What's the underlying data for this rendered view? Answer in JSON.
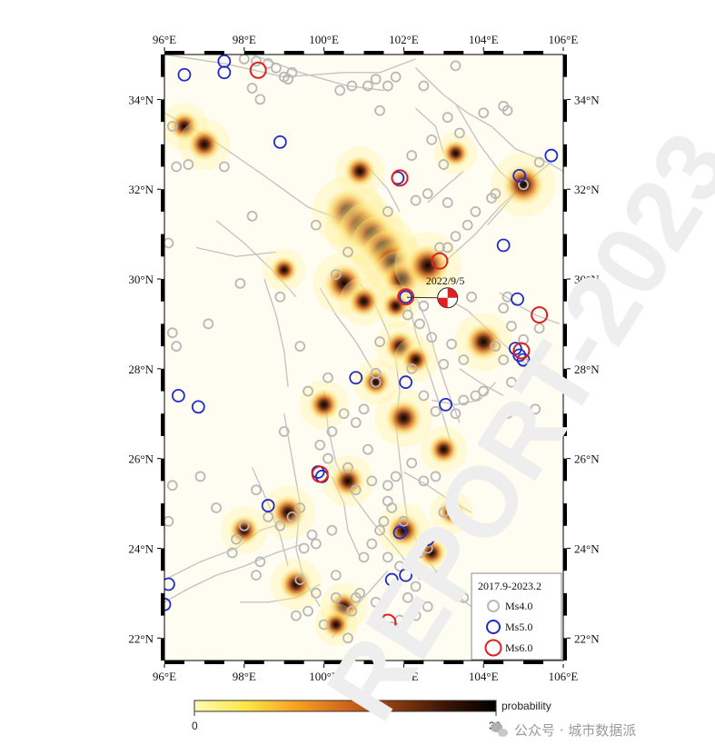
{
  "watermark": {
    "text": "REPORT-2023",
    "footer": "公众号 · 城市数据派",
    "footer_icon": "wechat-icon"
  },
  "map": {
    "lon_range": [
      96,
      106
    ],
    "lat_range": [
      21.5,
      35
    ],
    "lon_ticks": [
      96,
      98,
      100,
      102,
      104,
      106
    ],
    "lat_ticks": [
      22,
      24,
      26,
      28,
      30,
      32,
      34
    ],
    "lon_labels": [
      "96°E",
      "98°E",
      "100°E",
      "102°E",
      "104°E",
      "106°E"
    ],
    "lat_labels": [
      "22°N",
      "24°N",
      "26°N",
      "28°N",
      "30°N",
      "32°N",
      "34°N"
    ],
    "background_color": "#fffdf2",
    "fault_color": "#c4c4c4",
    "event_label": "2022/9/5",
    "event_location": [
      102.08,
      29.59
    ],
    "mechanism_location": [
      103.1,
      29.58
    ]
  },
  "legend": {
    "period": "2017.9-2023.2",
    "items": [
      {
        "label": "Ms4.0",
        "color": "#b8b8b8"
      },
      {
        "label": "Ms5.0",
        "color": "#1f2bc9"
      },
      {
        "label": "Ms6.0",
        "color": "#e02020"
      }
    ]
  },
  "colorbar": {
    "label": "probability",
    "min_label": "0",
    "max_label": "30",
    "colors": [
      "#fffbb4",
      "#fde64a",
      "#f7a322",
      "#d2661a",
      "#8a3a0f",
      "#3b1505",
      "#000000"
    ]
  },
  "earthquakes_ms5": [
    [
      96.5,
      34.55
    ],
    [
      97.5,
      34.85
    ],
    [
      97.5,
      34.6
    ],
    [
      98.9,
      33.05
    ],
    [
      101.85,
      32.25
    ],
    [
      104.9,
      32.3
    ],
    [
      105.7,
      32.75
    ],
    [
      104.5,
      30.75
    ],
    [
      102.05,
      29.6
    ],
    [
      104.85,
      29.55
    ],
    [
      104.8,
      28.45
    ],
    [
      104.9,
      28.3
    ],
    [
      105.0,
      28.2
    ],
    [
      100.8,
      27.8
    ],
    [
      102.05,
      27.7
    ],
    [
      103.05,
      27.2
    ],
    [
      96.35,
      27.4
    ],
    [
      96.85,
      27.15
    ],
    [
      99.85,
      25.7
    ],
    [
      99.95,
      25.6
    ],
    [
      98.6,
      24.95
    ],
    [
      101.9,
      24.35
    ],
    [
      102.6,
      24.2
    ],
    [
      101.7,
      23.3
    ],
    [
      102.05,
      23.4
    ],
    [
      96.1,
      23.2
    ],
    [
      96.0,
      22.75
    ]
  ],
  "earthquakes_ms6": [
    [
      98.35,
      34.65
    ],
    [
      101.9,
      32.25
    ],
    [
      102.9,
      30.4
    ],
    [
      102.05,
      29.6
    ],
    [
      105.4,
      29.2
    ],
    [
      104.95,
      28.4
    ],
    [
      99.9,
      25.65
    ],
    [
      101.6,
      22.35
    ]
  ],
  "earthquakes_ms4": [
    [
      96.2,
      33.4
    ],
    [
      96.3,
      32.5
    ],
    [
      96.6,
      32.55
    ],
    [
      97.5,
      32.5
    ],
    [
      96.1,
      30.8
    ],
    [
      97.1,
      29.0
    ],
    [
      96.3,
      28.5
    ],
    [
      96.2,
      28.8
    ],
    [
      98.2,
      31.4
    ],
    [
      98.4,
      34.0
    ],
    [
      98.2,
      34.25
    ],
    [
      98.0,
      34.9
    ],
    [
      98.3,
      34.85
    ],
    [
      98.8,
      34.7
    ],
    [
      99.0,
      34.5
    ],
    [
      99.1,
      34.45
    ],
    [
      98.6,
      34.8
    ],
    [
      99.2,
      34.6
    ],
    [
      100.4,
      34.2
    ],
    [
      100.7,
      34.3
    ],
    [
      101.1,
      34.3
    ],
    [
      101.3,
      34.45
    ],
    [
      101.6,
      34.3
    ],
    [
      101.4,
      33.75
    ],
    [
      101.8,
      34.5
    ],
    [
      102.5,
      34.3
    ],
    [
      103.1,
      33.6
    ],
    [
      103.3,
      34.75
    ],
    [
      102.7,
      33.1
    ],
    [
      103.4,
      33.25
    ],
    [
      103.0,
      32.55
    ],
    [
      104.0,
      33.7
    ],
    [
      104.5,
      33.85
    ],
    [
      104.6,
      33.75
    ],
    [
      105.4,
      32.6
    ],
    [
      105.0,
      32.1
    ],
    [
      104.3,
      31.9
    ],
    [
      104.2,
      31.8
    ],
    [
      103.8,
      31.5
    ],
    [
      103.6,
      31.2
    ],
    [
      103.3,
      30.95
    ],
    [
      103.1,
      30.7
    ],
    [
      102.9,
      30.7
    ],
    [
      102.6,
      31.9
    ],
    [
      103.1,
      31.7
    ],
    [
      102.2,
      32.75
    ],
    [
      102.3,
      31.75
    ],
    [
      101.6,
      31.5
    ],
    [
      100.6,
      30.6
    ],
    [
      100.3,
      30.1
    ],
    [
      99.8,
      31.2
    ],
    [
      98.9,
      29.6
    ],
    [
      97.9,
      29.9
    ],
    [
      99.4,
      28.5
    ],
    [
      102.5,
      29.4
    ],
    [
      102.4,
      29.0
    ],
    [
      102.1,
      29.2
    ],
    [
      102.7,
      28.7
    ],
    [
      103.0,
      28.1
    ],
    [
      103.2,
      28.55
    ],
    [
      103.5,
      28.2
    ],
    [
      103.7,
      29.6
    ],
    [
      104.5,
      29.35
    ],
    [
      104.6,
      29.6
    ],
    [
      104.7,
      28.95
    ],
    [
      104.5,
      28.2
    ],
    [
      105.0,
      28.15
    ],
    [
      105.2,
      28.1
    ],
    [
      104.7,
      27.7
    ],
    [
      104.6,
      27.0
    ],
    [
      105.3,
      27.1
    ],
    [
      105.0,
      28.65
    ],
    [
      105.4,
      28.9
    ],
    [
      104.3,
      28.5
    ],
    [
      104.0,
      27.5
    ],
    [
      103.8,
      27.4
    ],
    [
      103.5,
      27.3
    ],
    [
      103.3,
      27.0
    ],
    [
      102.8,
      27.05
    ],
    [
      102.5,
      27.4
    ],
    [
      102.2,
      28.0
    ],
    [
      101.4,
      28.6
    ],
    [
      101.3,
      27.9
    ],
    [
      101.0,
      27.1
    ],
    [
      100.8,
      26.8
    ],
    [
      100.5,
      27.0
    ],
    [
      100.2,
      26.6
    ],
    [
      99.9,
      26.3
    ],
    [
      100.1,
      26.0
    ],
    [
      100.6,
      25.8
    ],
    [
      101.2,
      25.5
    ],
    [
      101.6,
      25.4
    ],
    [
      101.5,
      24.6
    ],
    [
      101.8,
      25.6
    ],
    [
      102.2,
      25.9
    ],
    [
      102.5,
      25.5
    ],
    [
      102.8,
      25.6
    ],
    [
      101.6,
      25.05
    ],
    [
      102.4,
      23.9
    ],
    [
      103.0,
      24.8
    ],
    [
      102.0,
      24.6
    ],
    [
      101.2,
      24.1
    ],
    [
      101.0,
      23.8
    ],
    [
      100.9,
      23.0
    ],
    [
      101.3,
      22.8
    ],
    [
      102.3,
      22.5
    ],
    [
      102.6,
      22.7
    ],
    [
      102.1,
      22.9
    ],
    [
      102.3,
      23.15
    ],
    [
      101.9,
      23.6
    ],
    [
      101.6,
      23.8
    ],
    [
      100.8,
      22.9
    ],
    [
      100.7,
      22.6
    ],
    [
      100.3,
      22.9
    ],
    [
      99.8,
      23.0
    ],
    [
      99.4,
      23.3
    ],
    [
      99.5,
      24.0
    ],
    [
      99.7,
      24.3
    ],
    [
      99.4,
      24.9
    ],
    [
      99.2,
      24.7
    ],
    [
      98.9,
      24.5
    ],
    [
      98.6,
      24.7
    ],
    [
      98.4,
      23.7
    ],
    [
      98.3,
      23.4
    ],
    [
      98.0,
      24.5
    ],
    [
      97.7,
      23.9
    ],
    [
      97.8,
      24.2
    ],
    [
      97.3,
      24.9
    ],
    [
      96.9,
      25.6
    ],
    [
      96.2,
      25.4
    ],
    [
      96.1,
      24.6
    ],
    [
      98.3,
      25.3
    ],
    [
      99.0,
      26.6
    ],
    [
      99.6,
      27.5
    ],
    [
      100.1,
      27.8
    ],
    [
      101.3,
      27.7
    ],
    [
      101.7,
      24.9
    ],
    [
      101.4,
      24.4
    ],
    [
      99.8,
      24.1
    ],
    [
      100.2,
      24.4
    ],
    [
      101.1,
      26.2
    ],
    [
      100.8,
      25.3
    ],
    [
      102.6,
      24.0
    ],
    [
      102.9,
      23.4
    ],
    [
      103.5,
      22.9
    ],
    [
      101.7,
      22.25
    ],
    [
      101.9,
      22.4
    ],
    [
      100.0,
      22.3
    ],
    [
      99.3,
      22.5
    ],
    [
      100.6,
      22.0
    ],
    [
      101.4,
      22.5
    ],
    [
      99.6,
      22.6
    ],
    [
      100.3,
      23.4
    ]
  ],
  "hotspots": [
    {
      "center": [
        100.6,
        31.5
      ],
      "size": 1.0
    },
    {
      "center": [
        100.9,
        31.2
      ],
      "size": 1.0
    },
    {
      "center": [
        101.2,
        31.0
      ],
      "size": 0.9
    },
    {
      "center": [
        101.5,
        30.7
      ],
      "size": 0.9
    },
    {
      "center": [
        101.7,
        30.4
      ],
      "size": 0.8
    },
    {
      "center": [
        101.95,
        30.0
      ],
      "size": 0.7
    },
    {
      "center": [
        102.6,
        30.3
      ],
      "size": 0.9
    },
    {
      "center": [
        100.9,
        32.4
      ],
      "size": 0.5
    },
    {
      "center": [
        100.5,
        29.9
      ],
      "size": 0.8
    },
    {
      "center": [
        101.0,
        29.5
      ],
      "size": 0.5
    },
    {
      "center": [
        105.0,
        32.1
      ],
      "size": 0.85
    },
    {
      "center": [
        104.0,
        28.6
      ],
      "size": 0.7
    },
    {
      "center": [
        101.9,
        28.5
      ],
      "size": 0.5
    },
    {
      "center": [
        102.0,
        26.9
      ],
      "size": 0.7
    },
    {
      "center": [
        100.0,
        27.2
      ],
      "size": 0.5
    },
    {
      "center": [
        101.3,
        27.7
      ],
      "size": 0.4
    },
    {
      "center": [
        100.6,
        25.5
      ],
      "size": 0.55
    },
    {
      "center": [
        99.1,
        24.8
      ],
      "size": 0.6
    },
    {
      "center": [
        98.0,
        24.4
      ],
      "size": 0.45
    },
    {
      "center": [
        99.3,
        23.2
      ],
      "size": 0.55
    },
    {
      "center": [
        100.5,
        22.7
      ],
      "size": 0.45
    },
    {
      "center": [
        102.0,
        24.4
      ],
      "size": 0.6
    },
    {
      "center": [
        102.7,
        23.9
      ],
      "size": 0.4
    },
    {
      "center": [
        103.0,
        26.2
      ],
      "size": 0.45
    },
    {
      "center": [
        96.5,
        33.4
      ],
      "size": 0.45
    },
    {
      "center": [
        97.0,
        33.0
      ],
      "size": 0.55
    },
    {
      "center": [
        99.0,
        30.2
      ],
      "size": 0.35
    },
    {
      "center": [
        103.2,
        24.8
      ],
      "size": 0.35
    },
    {
      "center": [
        101.8,
        29.4
      ],
      "size": 0.35
    },
    {
      "center": [
        103.3,
        32.8
      ],
      "size": 0.35
    },
    {
      "center": [
        100.3,
        22.3
      ],
      "size": 0.35
    },
    {
      "center": [
        102.3,
        28.2
      ],
      "size": 0.4
    }
  ],
  "faults": [
    [
      [
        96.0,
        33.7
      ],
      [
        97.2,
        33.1
      ],
      [
        98.5,
        32.3
      ],
      [
        99.6,
        31.6
      ],
      [
        100.5,
        31.3
      ],
      [
        101.3,
        30.9
      ],
      [
        101.9,
        30.2
      ],
      [
        102.1,
        29.6
      ],
      [
        102.3,
        28.8
      ],
      [
        102.6,
        28.0
      ],
      [
        102.9,
        27.2
      ],
      [
        103.2,
        26.3
      ]
    ],
    [
      [
        96.0,
        35.0
      ],
      [
        97.5,
        34.8
      ],
      [
        99.0,
        34.5
      ],
      [
        100.5,
        34.6
      ],
      [
        101.4,
        34.6
      ],
      [
        102.3,
        34.9
      ]
    ],
    [
      [
        98.2,
        35.0
      ],
      [
        99.4,
        34.6
      ],
      [
        100.6,
        34.3
      ],
      [
        101.5,
        34.2
      ]
    ],
    [
      [
        102.3,
        34.7
      ],
      [
        103.0,
        34.1
      ],
      [
        103.6,
        33.7
      ],
      [
        104.2,
        33.4
      ],
      [
        104.8,
        32.9
      ],
      [
        105.6,
        32.6
      ],
      [
        106.0,
        32.4
      ]
    ],
    [
      [
        104.1,
        31.2
      ],
      [
        104.6,
        31.7
      ],
      [
        105.1,
        32.2
      ]
    ],
    [
      [
        102.8,
        30.2
      ],
      [
        103.3,
        30.6
      ],
      [
        103.8,
        31.0
      ],
      [
        104.4,
        31.6
      ],
      [
        105.0,
        32.1
      ],
      [
        105.7,
        32.6
      ]
    ],
    [
      [
        103.3,
        33.9
      ],
      [
        103.9,
        33.0
      ],
      [
        104.4,
        32.4
      ],
      [
        104.9,
        32.0
      ]
    ],
    [
      [
        102.3,
        29.6
      ],
      [
        102.6,
        29.0
      ],
      [
        102.8,
        28.3
      ],
      [
        103.1,
        27.5
      ],
      [
        103.4,
        26.8
      ]
    ],
    [
      [
        103.0,
        29.6
      ],
      [
        103.6,
        29.3
      ],
      [
        104.2,
        28.8
      ],
      [
        104.8,
        28.3
      ],
      [
        105.2,
        28.0
      ]
    ],
    [
      [
        96.8,
        30.7
      ],
      [
        97.8,
        30.5
      ],
      [
        98.8,
        30.6
      ]
    ],
    [
      [
        97.3,
        31.3
      ],
      [
        98.0,
        30.8
      ],
      [
        98.7,
        30.2
      ],
      [
        99.3,
        29.6
      ]
    ],
    [
      [
        99.9,
        29.8
      ],
      [
        100.3,
        29.2
      ],
      [
        100.8,
        28.6
      ],
      [
        101.2,
        28.0
      ]
    ],
    [
      [
        100.9,
        29.9
      ],
      [
        101.3,
        29.4
      ],
      [
        101.6,
        28.8
      ],
      [
        101.8,
        28.2
      ],
      [
        101.9,
        27.5
      ],
      [
        101.8,
        26.8
      ],
      [
        101.9,
        26.0
      ],
      [
        102.0,
        25.2
      ],
      [
        102.1,
        24.6
      ],
      [
        102.4,
        24.0
      ],
      [
        102.8,
        23.5
      ],
      [
        103.4,
        22.9
      ],
      [
        104.0,
        22.5
      ]
    ],
    [
      [
        100.0,
        27.5
      ],
      [
        100.1,
        26.7
      ],
      [
        100.3,
        25.9
      ],
      [
        100.7,
        25.2
      ],
      [
        101.2,
        24.6
      ],
      [
        101.8,
        24.0
      ],
      [
        102.4,
        23.3
      ]
    ],
    [
      [
        99.0,
        27.0
      ],
      [
        99.2,
        26.0
      ],
      [
        99.4,
        25.0
      ],
      [
        99.3,
        24.0
      ],
      [
        99.5,
        23.3
      ],
      [
        99.9,
        22.7
      ]
    ],
    [
      [
        98.2,
        25.8
      ],
      [
        98.6,
        25.0
      ],
      [
        98.9,
        24.3
      ],
      [
        99.1,
        23.6
      ]
    ],
    [
      [
        96.0,
        22.8
      ],
      [
        96.6,
        23.1
      ],
      [
        97.3,
        23.4
      ],
      [
        98.0,
        23.6
      ],
      [
        98.8,
        23.9
      ],
      [
        99.5,
        24.1
      ]
    ],
    [
      [
        96.0,
        23.3
      ],
      [
        96.9,
        23.7
      ],
      [
        97.8,
        24.0
      ],
      [
        98.4,
        24.4
      ],
      [
        99.1,
        24.6
      ]
    ],
    [
      [
        100.2,
        22.0
      ],
      [
        100.7,
        22.6
      ],
      [
        101.2,
        23.1
      ],
      [
        101.6,
        23.5
      ]
    ],
    [
      [
        97.9,
        22.8
      ],
      [
        98.6,
        22.8
      ],
      [
        99.3,
        22.9
      ],
      [
        99.9,
        23.2
      ]
    ],
    [
      [
        102.0,
        25.7
      ],
      [
        102.6,
        25.4
      ],
      [
        103.1,
        25.1
      ],
      [
        103.7,
        24.8
      ]
    ],
    [
      [
        102.7,
        27.3
      ],
      [
        103.3,
        27.2
      ],
      [
        103.9,
        27.3
      ],
      [
        104.3,
        27.7
      ]
    ],
    [
      [
        103.4,
        28.0
      ],
      [
        103.9,
        27.7
      ],
      [
        104.5,
        27.4
      ]
    ],
    [
      [
        100.2,
        25.6
      ],
      [
        100.5,
        25.0
      ],
      [
        100.6,
        24.4
      ],
      [
        100.9,
        23.8
      ]
    ],
    [
      [
        98.5,
        30.0
      ],
      [
        98.8,
        29.2
      ],
      [
        99.0,
        28.4
      ],
      [
        99.1,
        27.6
      ]
    ],
    [
      [
        102.6,
        31.7
      ],
      [
        103.1,
        32.1
      ],
      [
        103.5,
        32.4
      ]
    ],
    [
      [
        101.1,
        32.5
      ],
      [
        101.6,
        32.0
      ],
      [
        101.9,
        31.5
      ]
    ],
    [
      [
        102.3,
        33.8
      ],
      [
        102.8,
        33.4
      ],
      [
        103.0,
        32.8
      ]
    ],
    [
      [
        104.4,
        29.7
      ],
      [
        104.9,
        29.4
      ],
      [
        105.3,
        29.2
      ],
      [
        105.9,
        29.0
      ]
    ]
  ]
}
